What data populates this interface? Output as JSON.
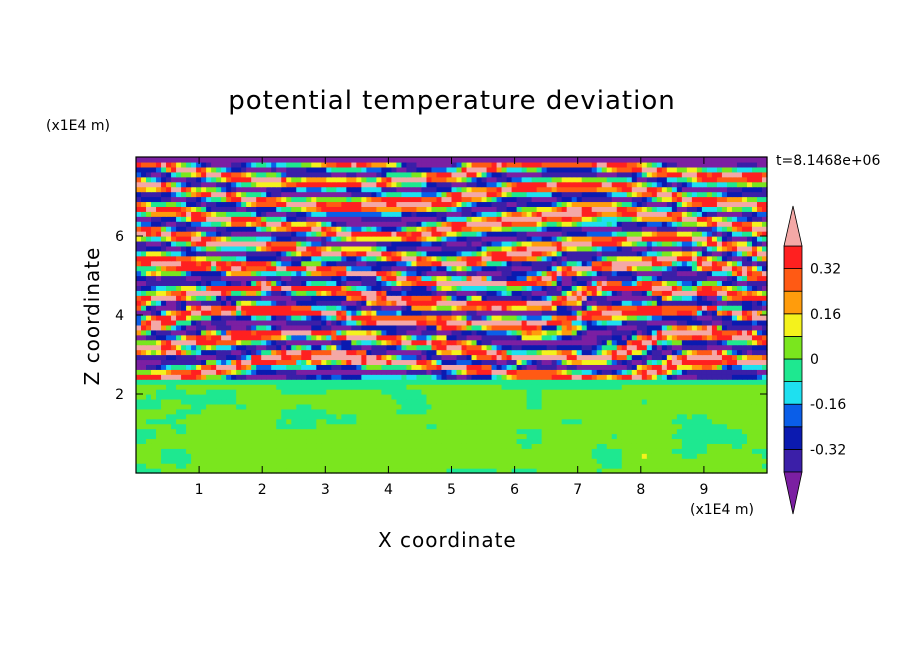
{
  "chart_data": {
    "type": "heatmap",
    "title": "potential temperature deviation",
    "xlabel": "X coordinate",
    "ylabel": "Z coordinate",
    "x_unit_label": "(x1E4 m)",
    "y_unit_label": "(x1E4 m)",
    "time_label": "t=8.1468e+06",
    "xlim": [
      0,
      10
    ],
    "ylim": [
      0,
      8
    ],
    "x_ticks": [
      1,
      2,
      3,
      4,
      5,
      6,
      7,
      8,
      9
    ],
    "y_ticks": [
      2,
      4,
      6
    ],
    "colorbar": {
      "tick_labels": [
        "0.32",
        "0.16",
        "0",
        "-0.16",
        "-0.32"
      ],
      "tick_values": [
        0.32,
        0.16,
        0,
        -0.16,
        -0.32
      ],
      "levels": [
        -0.4,
        -0.32,
        -0.24,
        -0.16,
        -0.08,
        0,
        0.08,
        0.16,
        0.24,
        0.32,
        0.4
      ],
      "colors": [
        "#7b1fa2",
        "#3b1fa8",
        "#0b1ab0",
        "#0a5ee8",
        "#1ee0f0",
        "#1ee890",
        "#7ae61e",
        "#f4f21c",
        "#ff9c0c",
        "#ff5a14",
        "#ff2020",
        "#f4a8a6"
      ],
      "extend": "both"
    },
    "regions": [
      {
        "z_range": [
          0,
          2.4
        ],
        "description_values": "dominantly 0 to 0.08 (green) with patches of -0.08 to 0"
      },
      {
        "z_range": [
          2.4,
          8
        ],
        "description_values": "alternating layers near +0.4 (pink) and -0.4 (purple) with mixing zones"
      }
    ]
  }
}
